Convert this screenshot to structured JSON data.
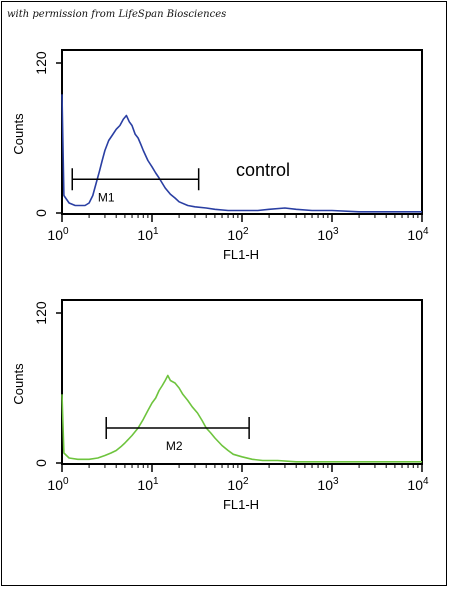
{
  "credit": "with permission from LifeSpan Biosciences",
  "chart_data": [
    {
      "type": "line",
      "xscale": "log",
      "xlim": [
        1,
        10000
      ],
      "ylim": [
        0,
        128
      ],
      "xlabel": "FL1-H",
      "ylabel": "Counts",
      "xticks": [
        {
          "base": "10",
          "exp": "0"
        },
        {
          "base": "10",
          "exp": "1"
        },
        {
          "base": "10",
          "exp": "2"
        },
        {
          "base": "10",
          "exp": "3"
        },
        {
          "base": "10",
          "exp": "4"
        }
      ],
      "yticks": [
        "0",
        "120"
      ],
      "line_color": "#2a3fa3",
      "annotation": "control",
      "gate": {
        "label": "M1",
        "x_start": 1.3,
        "x_end": 33
      },
      "series": [
        {
          "x": [
            1.0,
            1.05,
            1.2,
            1.4,
            1.6,
            1.8,
            2.0,
            2.2,
            2.4,
            2.6,
            2.8,
            3.0,
            3.3,
            3.6,
            4.0,
            4.4,
            4.8,
            5.2,
            5.6,
            6.0,
            6.5,
            7.0,
            7.5,
            8.0,
            9.0,
            10,
            11,
            12,
            14,
            16,
            18,
            20,
            25,
            30,
            40,
            50,
            70,
            100,
            150,
            200,
            300,
            400,
            600,
            1000,
            2000,
            5000,
            10000
          ],
          "y": [
            95,
            14,
            8,
            6,
            6,
            6,
            8,
            14,
            24,
            33,
            42,
            50,
            58,
            62,
            67,
            70,
            75,
            78,
            73,
            70,
            63,
            60,
            55,
            50,
            42,
            37,
            32,
            28,
            20,
            15,
            12,
            9,
            6,
            5,
            4,
            3,
            2,
            2,
            2,
            3,
            4,
            3,
            2,
            2,
            1,
            1,
            1
          ]
        }
      ]
    },
    {
      "type": "line",
      "xscale": "log",
      "xlim": [
        1,
        10000
      ],
      "ylim": [
        0,
        128
      ],
      "xlabel": "FL1-H",
      "ylabel": "Counts",
      "xticks": [
        {
          "base": "10",
          "exp": "0"
        },
        {
          "base": "10",
          "exp": "1"
        },
        {
          "base": "10",
          "exp": "2"
        },
        {
          "base": "10",
          "exp": "3"
        },
        {
          "base": "10",
          "exp": "4"
        }
      ],
      "yticks": [
        "0",
        "120"
      ],
      "line_color": "#6ec43e",
      "annotation": "",
      "gate": {
        "label": "M2",
        "x_start": 3.1,
        "x_end": 120
      },
      "series": [
        {
          "x": [
            1.0,
            1.05,
            1.2,
            1.5,
            2.0,
            2.5,
            3.0,
            3.5,
            4.0,
            4.5,
            5.0,
            6.0,
            7.0,
            8.0,
            9.0,
            10,
            11,
            12,
            13,
            14,
            15,
            16,
            18,
            20,
            22,
            25,
            28,
            32,
            36,
            40,
            45,
            50,
            60,
            70,
            80,
            100,
            130,
            170,
            250,
            400,
            700,
            1000,
            2000,
            5000,
            10000
          ],
          "y": [
            55,
            8,
            4,
            3,
            3,
            4,
            6,
            8,
            10,
            13,
            16,
            22,
            28,
            35,
            42,
            48,
            52,
            58,
            62,
            66,
            70,
            66,
            64,
            60,
            55,
            50,
            45,
            40,
            34,
            28,
            24,
            20,
            14,
            10,
            7,
            5,
            3,
            2,
            2,
            1,
            1,
            1,
            1,
            1,
            1
          ]
        }
      ]
    }
  ]
}
